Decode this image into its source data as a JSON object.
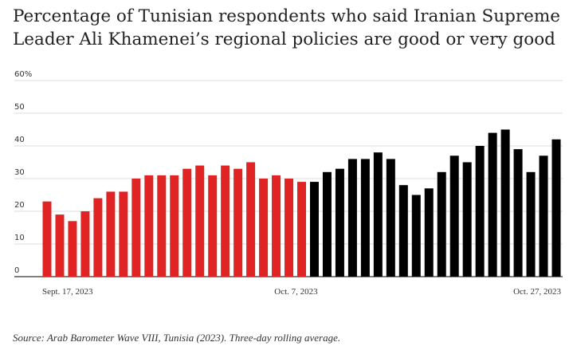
{
  "title": "Percentage of Tunisian respondents who said Iranian Supreme Leader Ali Khamenei’s regional policies are good or very good",
  "source": "Source: Arab Barometer Wave VIII, Tunisia (2023). Three-day rolling average.",
  "colors": {
    "before": "#e02424",
    "after": "#000000",
    "grid": "#dddddd",
    "axis": "#333333"
  },
  "chart_data": {
    "type": "bar",
    "title": "Percentage of Tunisian respondents who said Iranian Supreme Leader Ali Khamenei’s regional policies are good or very good",
    "xlabel": "",
    "ylabel": "",
    "ylim": [
      0,
      60
    ],
    "yticks": [
      "0",
      "10",
      "20",
      "30",
      "40",
      "50",
      "60%"
    ],
    "grid": true,
    "legend": "none",
    "x_tick_labels": [
      {
        "index": 0,
        "label": "Sept. 17, 2023"
      },
      {
        "index": 20,
        "label": "Oct. 7, 2023"
      },
      {
        "index": 40,
        "label": "Oct. 27, 2023"
      }
    ],
    "series": [
      {
        "values": [
          23,
          19,
          17,
          20,
          24,
          26,
          26,
          30,
          31,
          31,
          31,
          33,
          34,
          31,
          34,
          33,
          35,
          30,
          31,
          30,
          29
        ]
      },
      {
        "values": [
          29,
          32,
          33,
          36,
          36,
          38,
          36,
          28,
          25,
          27,
          32,
          37,
          35,
          40,
          44,
          45,
          39,
          32,
          37,
          42
        ]
      }
    ]
  }
}
